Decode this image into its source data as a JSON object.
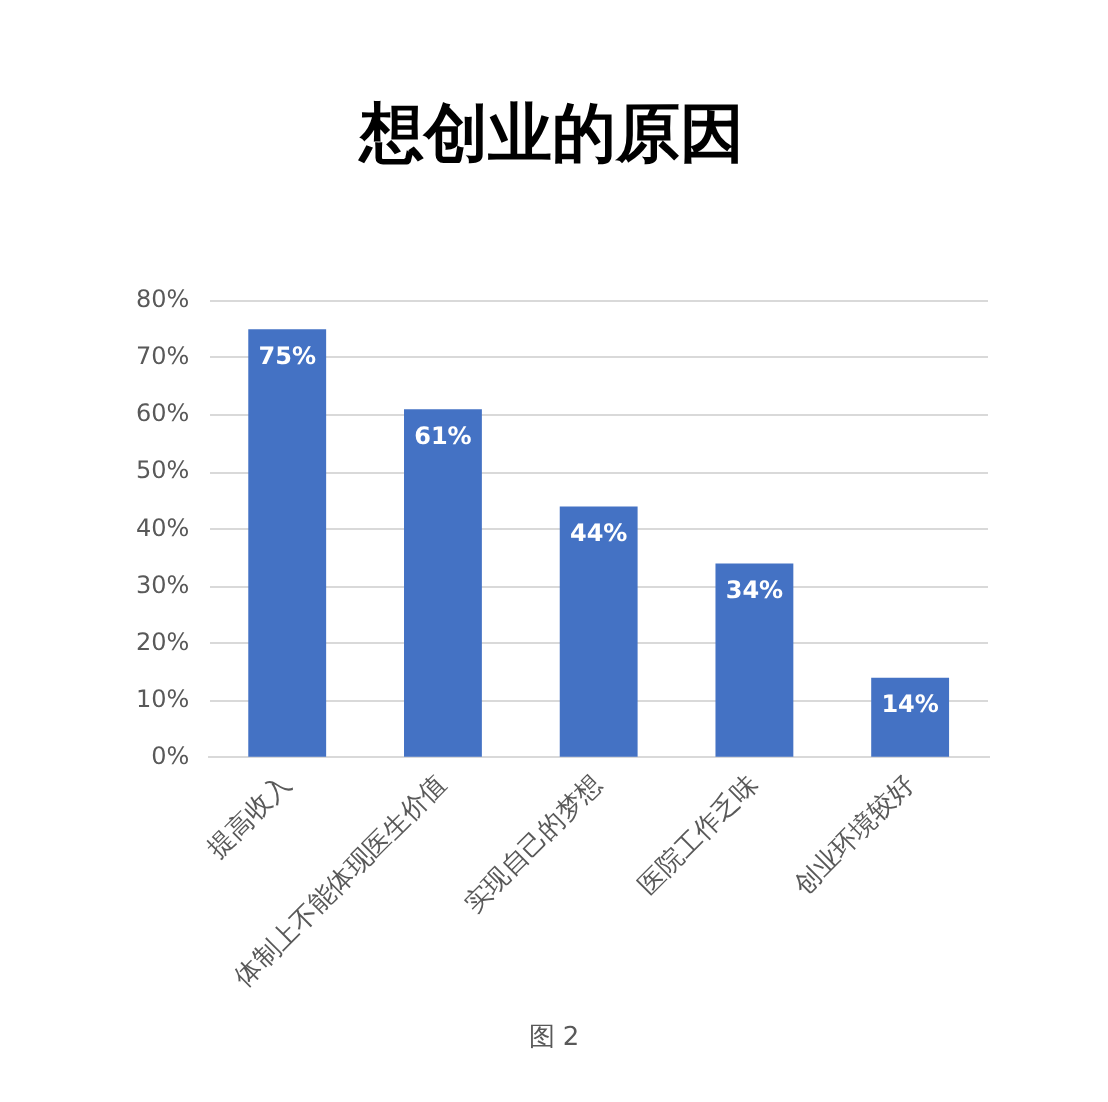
{
  "chart_data": {
    "type": "bar",
    "title": "想创业的原因",
    "categories": [
      "提高收入",
      "体制上不能体现医生价值",
      "实现自己的梦想",
      "医院工作乏味",
      "创业环境较好"
    ],
    "values": [
      75,
      61,
      44,
      34,
      14
    ],
    "color": "#4472c4",
    "value_labels": [
      "75%",
      "61%",
      "44%",
      "34%",
      "14%"
    ],
    "ylim": [
      0,
      80
    ],
    "yticks": [
      {
        "value": 0,
        "label": "0%"
      },
      {
        "value": 10,
        "label": "10%"
      },
      {
        "value": 20,
        "label": "20%"
      },
      {
        "value": 30,
        "label": "30%"
      },
      {
        "value": 40,
        "label": "40%"
      },
      {
        "value": 50,
        "label": "50%"
      },
      {
        "value": 60,
        "label": "60%"
      },
      {
        "value": 70,
        "label": "70%"
      },
      {
        "value": 80,
        "label": "80%"
      }
    ],
    "grid": "y",
    "annotations": [
      "图 2"
    ]
  }
}
